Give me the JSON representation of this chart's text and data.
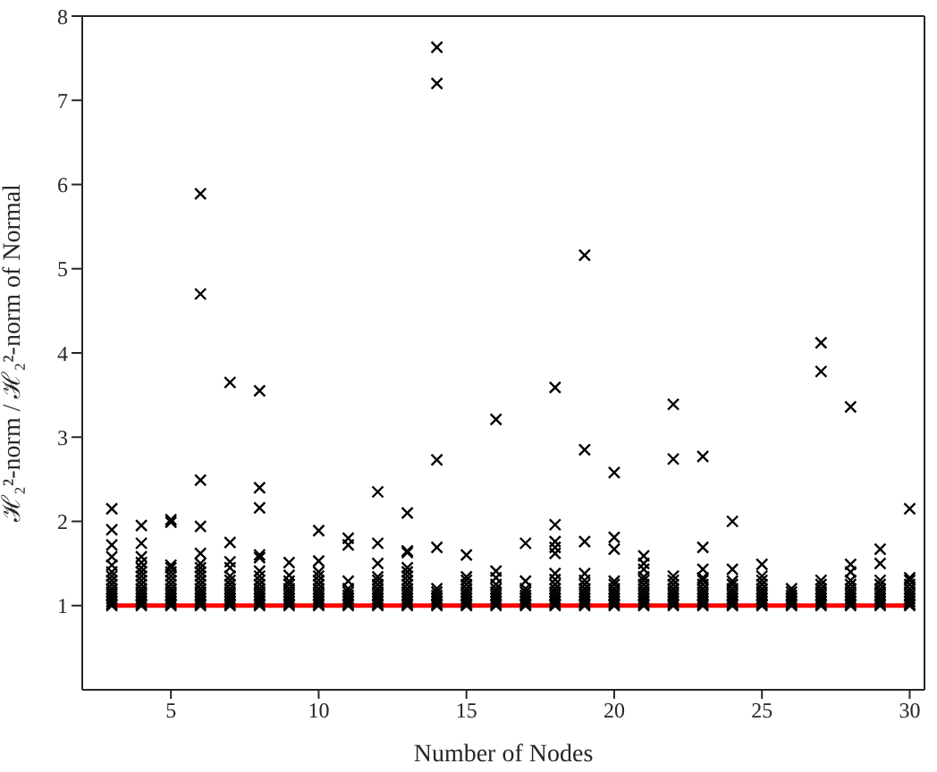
{
  "chart_data": {
    "type": "scatter",
    "xlabel": "Number of Nodes",
    "ylabel": "ℋ₂²-norm / ℋ₂²-norm of Normal",
    "xlim": [
      2,
      30.5
    ],
    "xticks": [
      5,
      10,
      15,
      20,
      25,
      30
    ],
    "ylim": [
      0,
      8
    ],
    "yticks": [
      1,
      2,
      3,
      4,
      5,
      6,
      7,
      8
    ],
    "marker": "cross",
    "series": [
      {
        "color": "#000000",
        "x": [
          3,
          3,
          3,
          3,
          3,
          3,
          3,
          3,
          3,
          3,
          3,
          3,
          3,
          3,
          3,
          3,
          4,
          4,
          4,
          4,
          4,
          4,
          4,
          4,
          4,
          4,
          4,
          4,
          4,
          4,
          4,
          4,
          5,
          5,
          5,
          5,
          5,
          5,
          5,
          5,
          5,
          5,
          5,
          5,
          5,
          5,
          5,
          6,
          6,
          6,
          6,
          6,
          6,
          6,
          6,
          6,
          6,
          6,
          6,
          6,
          6,
          6,
          6,
          6,
          6,
          7,
          7,
          7,
          7,
          7,
          7,
          7,
          7,
          7,
          7,
          7,
          7,
          7,
          7,
          8,
          8,
          8,
          8,
          8,
          8,
          8,
          8,
          8,
          8,
          8,
          8,
          8,
          8,
          8,
          8,
          9,
          9,
          9,
          9,
          9,
          9,
          9,
          9,
          9,
          9,
          9,
          10,
          10,
          10,
          10,
          10,
          10,
          10,
          10,
          10,
          10,
          10,
          10,
          10,
          11,
          11,
          11,
          11,
          11,
          11,
          11,
          11,
          11,
          11,
          12,
          12,
          12,
          12,
          12,
          12,
          12,
          12,
          12,
          12,
          12,
          12,
          12,
          13,
          13,
          13,
          13,
          13,
          13,
          13,
          13,
          13,
          13,
          13,
          13,
          13,
          13,
          13,
          14,
          14,
          14,
          14,
          14,
          14,
          14,
          14,
          14,
          14,
          14,
          15,
          15,
          15,
          15,
          15,
          15,
          15,
          15,
          15,
          15,
          15,
          16,
          16,
          16,
          16,
          16,
          16,
          16,
          16,
          16,
          16,
          16,
          17,
          17,
          17,
          17,
          17,
          17,
          17,
          17,
          17,
          18,
          18,
          18,
          18,
          18,
          18,
          18,
          18,
          18,
          18,
          18,
          18,
          18,
          18,
          18,
          19,
          19,
          19,
          19,
          19,
          19,
          19,
          19,
          19,
          19,
          19,
          19,
          19,
          20,
          20,
          20,
          20,
          20,
          20,
          20,
          20,
          20,
          20,
          20,
          20,
          21,
          21,
          21,
          21,
          21,
          21,
          21,
          21,
          21,
          21,
          21,
          21,
          21,
          22,
          22,
          22,
          22,
          22,
          22,
          22,
          22,
          22,
          22,
          22,
          22,
          23,
          23,
          23,
          23,
          23,
          23,
          23,
          23,
          23,
          23,
          23,
          23,
          23,
          24,
          24,
          24,
          24,
          24,
          24,
          24,
          24,
          24,
          24,
          24,
          25,
          25,
          25,
          25,
          25,
          25,
          25,
          25,
          25,
          25,
          25,
          26,
          26,
          26,
          26,
          26,
          26,
          26,
          27,
          27,
          27,
          27,
          27,
          27,
          27,
          27,
          27,
          27,
          27,
          28,
          28,
          28,
          28,
          28,
          28,
          28,
          28,
          28,
          28,
          28,
          28,
          29,
          29,
          29,
          29,
          29,
          29,
          29,
          29,
          29,
          29,
          29,
          30,
          30,
          30,
          30,
          30,
          30,
          30,
          30,
          30,
          30,
          30
        ],
        "values": [
          1,
          1.02,
          1.05,
          1.08,
          1.12,
          1.16,
          1.2,
          1.25,
          1.3,
          1.35,
          1.4,
          1.48,
          1.58,
          1.72,
          1.9,
          2.15,
          1,
          1.02,
          1.05,
          1.08,
          1.12,
          1.16,
          1.2,
          1.25,
          1.3,
          1.35,
          1.4,
          1.45,
          1.51,
          1.58,
          1.74,
          1.95,
          1,
          1.02,
          1.05,
          1.08,
          1.12,
          1.16,
          1.2,
          1.25,
          1.3,
          1.35,
          1.4,
          1.45,
          1.48,
          1.99,
          2.02,
          1,
          1.02,
          1.05,
          1.08,
          1.12,
          1.16,
          1.2,
          1.25,
          1.3,
          1.35,
          1.4,
          1.45,
          1.5,
          1.62,
          1.94,
          2.49,
          4.7,
          5.89,
          1,
          1.02,
          1.05,
          1.08,
          1.12,
          1.16,
          1.2,
          1.25,
          1.3,
          1.35,
          1.45,
          1.52,
          1.75,
          3.65,
          1,
          1.02,
          1.05,
          1.08,
          1.12,
          1.16,
          1.2,
          1.25,
          1.3,
          1.35,
          1.41,
          1.57,
          1.6,
          2.16,
          2.4,
          3.55,
          1,
          1.02,
          1.05,
          1.08,
          1.12,
          1.16,
          1.2,
          1.25,
          1.29,
          1.36,
          1.51,
          1,
          1.02,
          1.05,
          1.08,
          1.12,
          1.16,
          1.2,
          1.25,
          1.3,
          1.35,
          1.4,
          1.53,
          1.89,
          1,
          1.02,
          1.05,
          1.08,
          1.12,
          1.16,
          1.2,
          1.29,
          1.72,
          1.8,
          1,
          1.02,
          1.05,
          1.08,
          1.12,
          1.16,
          1.2,
          1.25,
          1.3,
          1.34,
          1.5,
          1.74,
          2.35,
          1,
          1.02,
          1.05,
          1.08,
          1.12,
          1.16,
          1.2,
          1.25,
          1.3,
          1.35,
          1.4,
          1.45,
          1.63,
          1.65,
          2.1,
          1,
          1.02,
          1.05,
          1.08,
          1.12,
          1.16,
          1.2,
          1.69,
          2.73,
          7.2,
          7.63,
          1,
          1.02,
          1.05,
          1.08,
          1.12,
          1.16,
          1.2,
          1.25,
          1.3,
          1.34,
          1.6,
          1,
          1.02,
          1.05,
          1.08,
          1.12,
          1.16,
          1.2,
          1.25,
          1.33,
          1.41,
          3.21,
          1,
          1.02,
          1.05,
          1.08,
          1.12,
          1.16,
          1.2,
          1.29,
          1.74,
          1,
          1.02,
          1.05,
          1.08,
          1.12,
          1.16,
          1.2,
          1.25,
          1.31,
          1.38,
          1.62,
          1.69,
          1.76,
          1.96,
          3.59,
          1,
          1.02,
          1.05,
          1.08,
          1.12,
          1.16,
          1.2,
          1.25,
          1.3,
          1.38,
          1.76,
          2.85,
          5.16,
          1,
          1.02,
          1.05,
          1.08,
          1.12,
          1.16,
          1.2,
          1.25,
          1.29,
          1.67,
          1.81,
          2.58,
          1,
          1.02,
          1.05,
          1.08,
          1.12,
          1.16,
          1.2,
          1.25,
          1.3,
          1.34,
          1.43,
          1.5,
          1.59,
          1,
          1.02,
          1.05,
          1.08,
          1.12,
          1.16,
          1.2,
          1.25,
          1.3,
          1.35,
          2.74,
          3.39,
          1,
          1.02,
          1.05,
          1.08,
          1.12,
          1.16,
          1.2,
          1.25,
          1.3,
          1.33,
          1.43,
          1.69,
          2.77,
          1,
          1.02,
          1.05,
          1.08,
          1.12,
          1.16,
          1.2,
          1.25,
          1.29,
          1.43,
          2.0,
          1,
          1.02,
          1.05,
          1.08,
          1.12,
          1.16,
          1.2,
          1.25,
          1.3,
          1.35,
          1.49,
          1,
          1.02,
          1.05,
          1.08,
          1.12,
          1.16,
          1.2,
          1,
          1.02,
          1.05,
          1.08,
          1.12,
          1.16,
          1.2,
          1.25,
          1.3,
          3.78,
          4.12,
          1,
          1.02,
          1.05,
          1.08,
          1.12,
          1.16,
          1.2,
          1.25,
          1.3,
          1.4,
          1.49,
          3.36,
          1,
          1.02,
          1.05,
          1.08,
          1.12,
          1.16,
          1.2,
          1.25,
          1.3,
          1.5,
          1.67,
          1,
          1.02,
          1.05,
          1.08,
          1.12,
          1.16,
          1.2,
          1.25,
          1.3,
          1.33,
          2.15
        ]
      },
      {
        "type": "line",
        "color": "#ff0000",
        "marker": "none",
        "line_style": "solid",
        "x": [
          3,
          30
        ],
        "values": [
          1,
          1
        ]
      }
    ]
  }
}
